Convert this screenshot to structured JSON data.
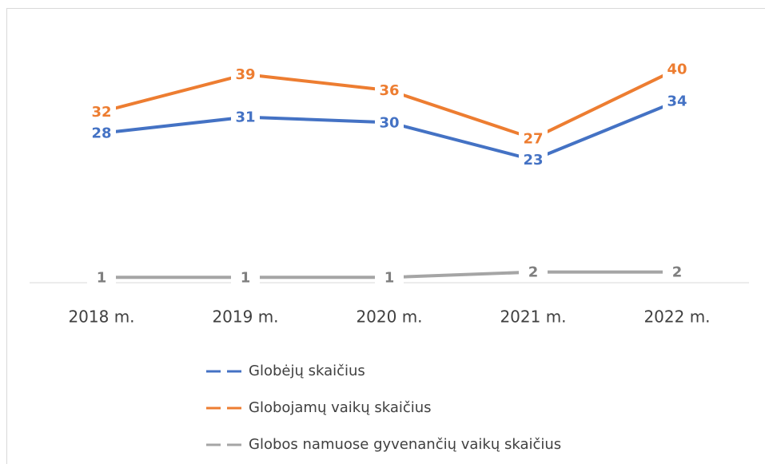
{
  "chart_data": {
    "type": "line",
    "categories": [
      "2018 m.",
      "2019 m.",
      "2020 m.",
      "2021 m.",
      "2022 m."
    ],
    "series": [
      {
        "name": "Globėjų skaičius",
        "color": "#4472c4",
        "values": [
          28,
          31,
          30,
          23,
          34
        ]
      },
      {
        "name": "Globojamų vaikų skaičius",
        "color": "#ed7d31",
        "values": [
          32,
          39,
          36,
          27,
          40
        ]
      },
      {
        "name": "Globos namuose gyvenančių vaikų skaičius",
        "color": "#a5a5a5",
        "values": [
          1,
          1,
          1,
          2,
          2
        ]
      }
    ],
    "ylim": [
      0,
      45
    ],
    "legend": "bottom"
  }
}
